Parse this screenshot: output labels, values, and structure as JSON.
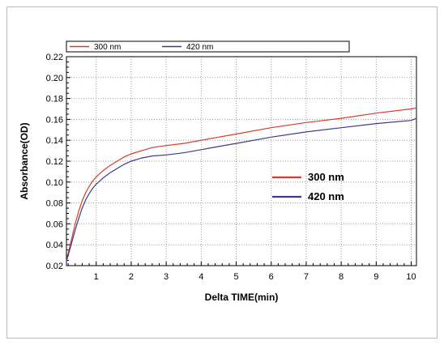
{
  "chart_data": {
    "type": "line",
    "title": "",
    "xlabel": "Delta TIME(min)",
    "ylabel": "Absorbance(OD)",
    "xlim": [
      0.15,
      10.15
    ],
    "ylim": [
      0.02,
      0.22
    ],
    "xticks": [
      "1",
      "2",
      "3",
      "4",
      "5",
      "6",
      "7",
      "8",
      "9",
      "10"
    ],
    "yticks": [
      "0.02",
      "0.04",
      "0.06",
      "0.08",
      "0.10",
      "0.12",
      "0.14",
      "0.16",
      "0.18",
      "0.20",
      "0.22"
    ],
    "grid": true,
    "legend_position": "top",
    "series": [
      {
        "name": "300 nm",
        "color": "#d93a2b",
        "x": [
          0.15,
          0.2,
          0.3,
          0.4,
          0.5,
          0.6,
          0.7,
          0.8,
          0.9,
          1.0,
          1.2,
          1.4,
          1.6,
          1.8,
          2.0,
          2.3,
          2.6,
          3.0,
          3.5,
          4.0,
          4.5,
          5.0,
          6.0,
          7.0,
          8.0,
          9.0,
          10.0,
          10.15
        ],
        "y": [
          0.024,
          0.032,
          0.046,
          0.06,
          0.072,
          0.082,
          0.09,
          0.096,
          0.101,
          0.105,
          0.111,
          0.116,
          0.12,
          0.124,
          0.127,
          0.13,
          0.133,
          0.135,
          0.137,
          0.14,
          0.143,
          0.146,
          0.152,
          0.157,
          0.161,
          0.166,
          0.17,
          0.171
        ]
      },
      {
        "name": "420 nm",
        "color": "#3d3a8c",
        "x": [
          0.15,
          0.2,
          0.3,
          0.4,
          0.5,
          0.6,
          0.7,
          0.8,
          0.9,
          1.0,
          1.2,
          1.4,
          1.6,
          1.8,
          2.0,
          2.3,
          2.6,
          3.0,
          3.5,
          4.0,
          4.5,
          5.0,
          6.0,
          7.0,
          8.0,
          9.0,
          10.0,
          10.15
        ],
        "y": [
          0.024,
          0.03,
          0.042,
          0.054,
          0.065,
          0.075,
          0.083,
          0.089,
          0.094,
          0.098,
          0.104,
          0.109,
          0.113,
          0.117,
          0.12,
          0.123,
          0.125,
          0.126,
          0.128,
          0.131,
          0.134,
          0.137,
          0.143,
          0.148,
          0.152,
          0.156,
          0.159,
          0.161
        ]
      }
    ]
  },
  "legends": {
    "top": [
      "300 nm",
      "420 nm"
    ],
    "inset": [
      "300 nm",
      "420 nm"
    ]
  }
}
